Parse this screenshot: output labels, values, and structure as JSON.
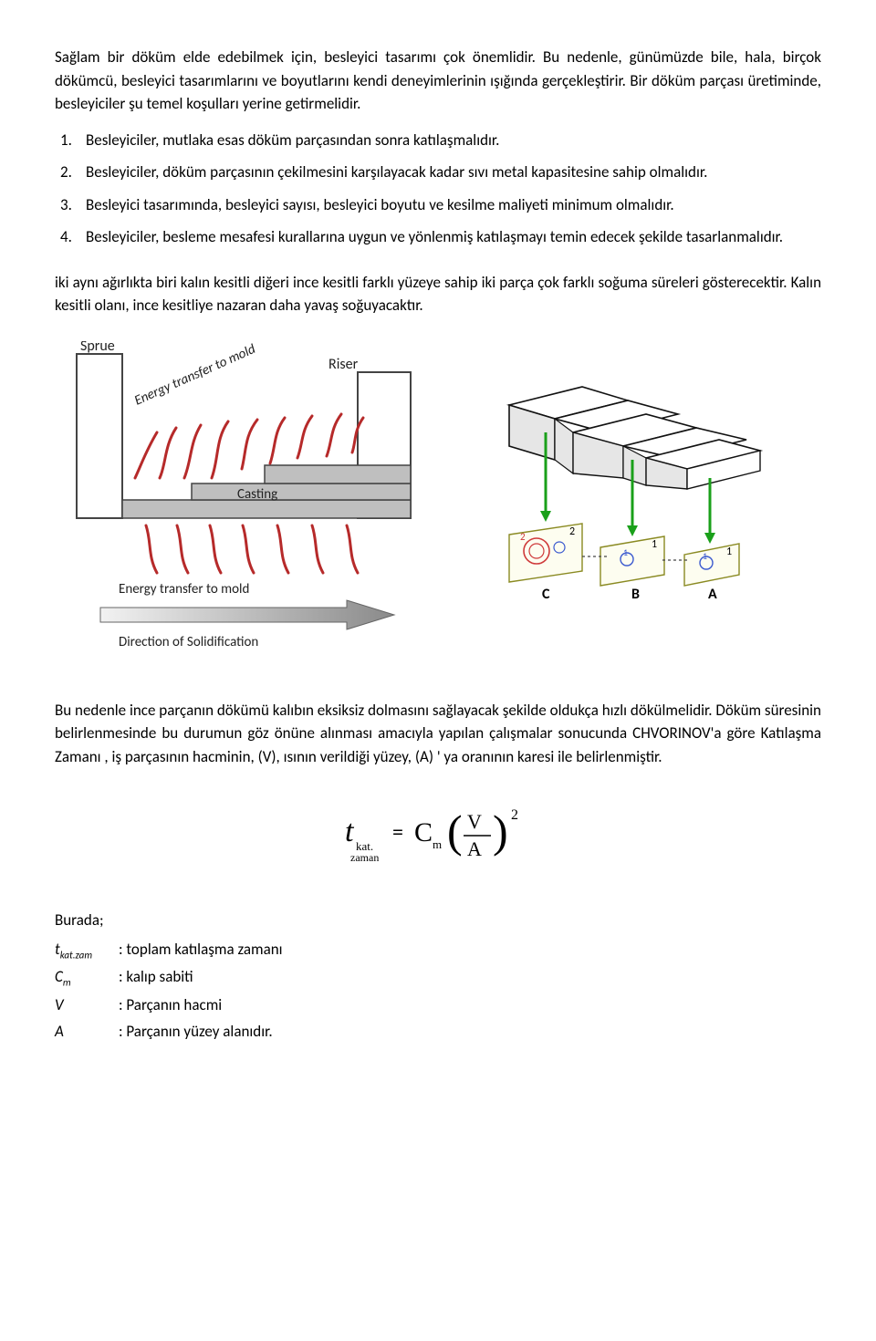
{
  "intro_paragraph": "Sağlam bir döküm elde edebilmek için, besleyici tasarımı çok önemlidir. Bu nedenle, günümüzde bile, hala, birçok dökümcü, besleyici tasarımlarını ve boyutlarını kendi deneyimlerinin ışığında gerçekleştirir. Bir döküm parçası üretiminde, besleyiciler şu temel koşulları yerine getirmelidir.",
  "list_items": [
    {
      "n": "1.",
      "t": "Besleyiciler, mutlaka esas döküm parçasından sonra katılaşmalıdır."
    },
    {
      "n": "2.",
      "t": "Besleyiciler, döküm parçasının çekilmesini karşılayacak kadar sıvı metal kapasitesine sahip olmalıdır."
    },
    {
      "n": "3.",
      "t": "Besleyici tasarımında, besleyici sayısı, besleyici boyutu ve kesilme maliyeti minimum olmalıdır."
    },
    {
      "n": "4.",
      "t": "Besleyiciler, besleme mesafesi kurallarına uygun ve yönlenmiş katılaşmayı temin edecek şekilde tasarlanmalıdır."
    }
  ],
  "mid_paragraph": "iki aynı ağırlıkta biri kalın kesitli diğeri ince kesitli farklı yüzeye sahip iki parça çok farklı soğuma süreleri gösterecektir. Kalın kesitli olanı, ince kesitliye nazaran daha yavaş soğuyacaktır.",
  "figure_left": {
    "labels": {
      "sprue": "Sprue",
      "riser": "Riser",
      "casting": "Casting",
      "energy_top": "Energy transfer to mold",
      "energy_bottom": "Energy transfer to mold",
      "direction": "Direction of Solidification"
    },
    "colors": {
      "block_fill": "#ffffff",
      "block_stroke": "#444444",
      "casting_fill": "#bfbfbf",
      "arrow_red": "#b62a2a",
      "bottom_arrow_fill": "#b9b9b9",
      "text": "#222222"
    }
  },
  "figure_right": {
    "step_labels": [
      "C",
      "B",
      "A"
    ],
    "plane_labels": [
      "2",
      "1",
      "1"
    ],
    "colors": {
      "block_stroke": "#111111",
      "block_face": "#ffffff",
      "block_shadow": "#e6e6e6",
      "green_arrow": "#1aa01a",
      "plane_border": "#8a8a22",
      "plane_fill": "#fdfdf0",
      "swirl_red": "#cf3a3a",
      "swirl_blue": "#3a59cf",
      "dotted": "#444444",
      "label_text": "#000000"
    }
  },
  "bottom_paragraph": "Bu nedenle ince parçanın dökümü kalıbın eksiksiz dolmasını sağlayacak şekilde oldukça hızlı dökülmelidir. Döküm süresinin belirlenmesinde bu durumun göz önüne alınması amacıyla yapılan çalışmalar sonucunda CHVORINOV'a göre Katılaşma Zamanı , iş parçasının hacminin, (V), ısının verildiği yüzey, (A) ' ya oranının karesi ile belirlenmiştir.",
  "formula": {
    "lhs_main": "t",
    "lhs_sub1": "kat.",
    "lhs_sub2": "zaman",
    "eq": "=",
    "cm_main": "C",
    "cm_sub": "m",
    "frac_top": "V",
    "frac_bot": "A",
    "exp": "2",
    "colors": {
      "text": "#000000",
      "brace": "#000000"
    }
  },
  "defs": {
    "header": "Burada;",
    "rows": [
      {
        "sym_html": "t<sub style='font-size:11px;'>kat.zam</sub>",
        "txt": ": toplam katılaşma zamanı"
      },
      {
        "sym_html": "C<sub style='font-size:11px;'>m</sub>",
        "txt": ": kalıp sabiti"
      },
      {
        "sym_html": "V",
        "txt": ": Parçanın hacmi"
      },
      {
        "sym_html": "A",
        "txt": ": Parçanın yüzey alanıdır."
      }
    ]
  }
}
